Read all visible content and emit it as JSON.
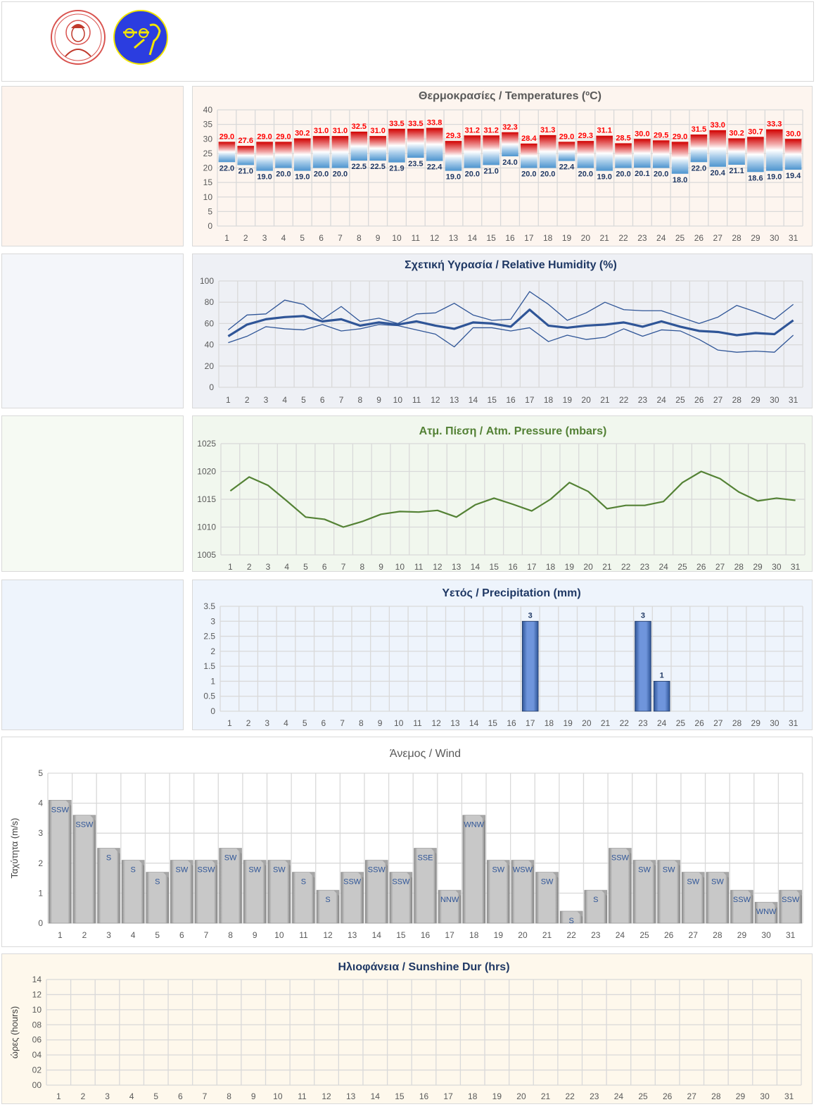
{
  "header": {
    "logos": [
      "university-seal-logo",
      "observatory-logo"
    ]
  },
  "chart_data": [
    {
      "type": "bar",
      "title": "Θερμοκρασίες / Temperatures (ºC)",
      "categories": [
        "1",
        "2",
        "3",
        "4",
        "5",
        "6",
        "7",
        "8",
        "9",
        "10",
        "11",
        "12",
        "13",
        "14",
        "15",
        "16",
        "17",
        "18",
        "19",
        "20",
        "21",
        "22",
        "23",
        "24",
        "25",
        "26",
        "27",
        "28",
        "29",
        "30",
        "31"
      ],
      "ylim": [
        0,
        40
      ],
      "yticks": [
        "0",
        "5",
        "10",
        "15",
        "20",
        "25",
        "30",
        "35",
        "40"
      ],
      "series": [
        {
          "name": "max",
          "values": [
            29.0,
            27.6,
            29.0,
            29.0,
            30.2,
            31.0,
            31.0,
            32.5,
            31.0,
            33.5,
            33.5,
            33.8,
            29.3,
            31.2,
            31.2,
            32.3,
            28.4,
            31.3,
            29.0,
            29.3,
            31.1,
            28.5,
            30.0,
            29.5,
            29.0,
            31.5,
            33.0,
            30.2,
            30.7,
            33.3,
            30.0
          ],
          "labels": [
            "29.0",
            "27.6",
            "29.0",
            "29.0",
            "30.2",
            "31.0",
            "31.0",
            "32.5",
            "31.0",
            "33.5",
            "33.5",
            "33.8",
            "29.3",
            "31.2",
            "31.2",
            "32.3",
            "28.4",
            "31.3",
            "29.0",
            "29.3",
            "31.1",
            "28.5",
            "30.0",
            "29.5",
            "29.0",
            "31.5",
            "33.0",
            "30.2",
            "30.7",
            "33.3",
            "30.0"
          ]
        },
        {
          "name": "min",
          "values": [
            22.0,
            21.0,
            19.0,
            20.0,
            19.0,
            20.0,
            20.0,
            22.5,
            22.5,
            21.9,
            23.5,
            22.4,
            19.0,
            20.0,
            21.0,
            24.0,
            20.0,
            20.0,
            22.4,
            20.0,
            19.0,
            20.0,
            20.1,
            20.0,
            18.0,
            22.0,
            20.4,
            21.1,
            18.6,
            19.0,
            19.4
          ],
          "labels": [
            "22.0",
            "21.0",
            "19.0",
            "20.0",
            "19.0",
            "20.0",
            "20.0",
            "22.5",
            "22.5",
            "21.9",
            "23.5",
            "22.4",
            "19.0",
            "20.0",
            "21.0",
            "24.0",
            "20.0",
            "20.0",
            "22.4",
            "20.0",
            "19.0",
            "20.0",
            "20.1",
            "20.0",
            "18.0",
            "22.0",
            "20.4",
            "21.1",
            "18.6",
            "19.0",
            "19.4"
          ]
        }
      ],
      "colors": {
        "max_label": "#ff0000",
        "min_label": "#1f3864",
        "title": "#595959"
      }
    },
    {
      "type": "line",
      "title": "Σχετική Υγρασία / Relative Humidity (%)",
      "categories": [
        "1",
        "2",
        "3",
        "4",
        "5",
        "6",
        "7",
        "8",
        "9",
        "10",
        "11",
        "12",
        "13",
        "14",
        "15",
        "16",
        "17",
        "18",
        "19",
        "20",
        "21",
        "22",
        "23",
        "24",
        "25",
        "26",
        "27",
        "28",
        "29",
        "30",
        "31"
      ],
      "ylim": [
        0,
        100
      ],
      "yticks": [
        "0",
        "20",
        "40",
        "60",
        "80",
        "100"
      ],
      "series": [
        {
          "name": "max",
          "values": [
            54,
            68,
            69,
            82,
            78,
            64,
            76,
            62,
            65,
            60,
            69,
            70,
            79,
            68,
            63,
            64,
            90,
            78,
            63,
            70,
            80,
            73,
            72,
            72,
            66,
            60,
            66,
            77,
            71,
            64,
            78
          ]
        },
        {
          "name": "mean",
          "values": [
            48,
            59,
            64,
            66,
            67,
            62,
            64,
            58,
            61,
            59,
            62,
            58,
            55,
            61,
            60,
            57,
            73,
            58,
            56,
            58,
            59,
            61,
            57,
            62,
            57,
            53,
            52,
            49,
            51,
            50,
            63
          ]
        },
        {
          "name": "min",
          "values": [
            42,
            48,
            57,
            55,
            54,
            59,
            53,
            55,
            59,
            58,
            54,
            50,
            38,
            56,
            56,
            53,
            56,
            43,
            49,
            45,
            47,
            55,
            48,
            54,
            53,
            45,
            35,
            33,
            34,
            33,
            49
          ]
        }
      ],
      "colors": {
        "line": "#2f5597",
        "title": "#1f3864"
      }
    },
    {
      "type": "line",
      "title": "Ατμ. Πίεση / Atm. Pressure (mbars)",
      "categories": [
        "1",
        "2",
        "3",
        "4",
        "5",
        "6",
        "7",
        "8",
        "9",
        "10",
        "11",
        "12",
        "13",
        "14",
        "15",
        "16",
        "17",
        "18",
        "19",
        "20",
        "21",
        "22",
        "23",
        "24",
        "25",
        "26",
        "27",
        "28",
        "29",
        "30",
        "31"
      ],
      "ylim": [
        1005,
        1025
      ],
      "yticks": [
        "1005",
        "1010",
        "1015",
        "1020",
        "1025"
      ],
      "series": [
        {
          "name": "pressure",
          "values": [
            1016.5,
            1019.0,
            1017.5,
            1014.7,
            1011.8,
            1011.4,
            1010.0,
            1011.0,
            1012.3,
            1012.8,
            1012.7,
            1013.0,
            1011.8,
            1014.0,
            1015.2,
            1014.1,
            1012.9,
            1015.0,
            1018.0,
            1016.4,
            1013.3,
            1013.9,
            1013.9,
            1014.6,
            1018.0,
            1020.0,
            1018.7,
            1016.3,
            1014.7,
            1015.2,
            1014.8
          ]
        }
      ],
      "colors": {
        "line": "#548235",
        "title": "#538135"
      }
    },
    {
      "type": "bar",
      "title": "Υετός / Precipitation (mm)",
      "categories": [
        "1",
        "2",
        "3",
        "4",
        "5",
        "6",
        "7",
        "8",
        "9",
        "10",
        "11",
        "12",
        "13",
        "14",
        "15",
        "16",
        "17",
        "18",
        "19",
        "20",
        "21",
        "22",
        "23",
        "24",
        "25",
        "26",
        "27",
        "28",
        "29",
        "30",
        "31"
      ],
      "ylim": [
        0,
        3.5
      ],
      "yticks": [
        "0",
        "0.5",
        "1",
        "1.5",
        "2",
        "2.5",
        "3",
        "3.5"
      ],
      "series": [
        {
          "name": "precipitation",
          "values": [
            0,
            0,
            0,
            0,
            0,
            0,
            0,
            0,
            0,
            0,
            0,
            0,
            0,
            0,
            0,
            0,
            3,
            0,
            0,
            0,
            0,
            0,
            3,
            1,
            0,
            0,
            0,
            0,
            0,
            0,
            0
          ],
          "labels": [
            "",
            "",
            "",
            "",
            "",
            "",
            "",
            "",
            "",
            "",
            "",
            "",
            "",
            "",
            "",
            "",
            "3",
            "",
            "",
            "",
            "",
            "",
            "3",
            "1",
            "",
            "",
            "",
            "",
            "",
            "",
            ""
          ]
        }
      ],
      "colors": {
        "bar": "#4472c4",
        "label": "#1f3864",
        "title": "#1f3864"
      }
    },
    {
      "type": "bar",
      "title": "Άνεμος / Wind",
      "ylabel": "Ταχύτητα  (m/s)",
      "categories": [
        "1",
        "2",
        "3",
        "4",
        "5",
        "6",
        "7",
        "8",
        "9",
        "10",
        "11",
        "12",
        "13",
        "14",
        "15",
        "16",
        "17",
        "18",
        "19",
        "20",
        "21",
        "22",
        "23",
        "24",
        "25",
        "26",
        "27",
        "28",
        "29",
        "30",
        "31"
      ],
      "ylim": [
        0,
        5
      ],
      "yticks": [
        "0",
        "1",
        "2",
        "3",
        "4",
        "5"
      ],
      "series": [
        {
          "name": "speed",
          "values": [
            4.1,
            3.6,
            2.5,
            2.1,
            1.7,
            2.1,
            2.1,
            2.5,
            2.1,
            2.1,
            1.7,
            1.1,
            1.7,
            2.1,
            1.7,
            2.5,
            1.1,
            3.6,
            2.1,
            2.1,
            1.7,
            0.4,
            1.1,
            2.5,
            2.1,
            2.1,
            1.7,
            1.7,
            1.1,
            0.7,
            1.1
          ],
          "labels": [
            "SSW",
            "SSW",
            "S",
            "S",
            "S",
            "SW",
            "SSW",
            "SW",
            "SW",
            "SW",
            "S",
            "S",
            "SSW",
            "SSW",
            "SSW",
            "SSE",
            "NNW",
            "WNW",
            "SW",
            "WSW",
            "SW",
            "S",
            "S",
            "SSW",
            "SW",
            "SW",
            "SW",
            "SW",
            "SSW",
            "WNW",
            "SSW"
          ]
        }
      ],
      "colors": {
        "bar": "#bfbfbf",
        "label": "#2f5597",
        "title": "#595959"
      }
    },
    {
      "type": "bar",
      "title": "Ηλιοφάνεια / Sunshine Dur (hrs)",
      "ylabel": "ώρες (hours)",
      "categories": [
        "1",
        "2",
        "3",
        "4",
        "5",
        "6",
        "7",
        "8",
        "9",
        "10",
        "11",
        "12",
        "13",
        "14",
        "15",
        "16",
        "17",
        "18",
        "19",
        "20",
        "21",
        "22",
        "23",
        "24",
        "25",
        "26",
        "27",
        "28",
        "29",
        "30",
        "31"
      ],
      "ylim": [
        0,
        14
      ],
      "yticks": [
        "00",
        "02",
        "04",
        "06",
        "08",
        "10",
        "12",
        "14"
      ],
      "series": [],
      "colors": {
        "title": "#1f3864"
      }
    }
  ]
}
